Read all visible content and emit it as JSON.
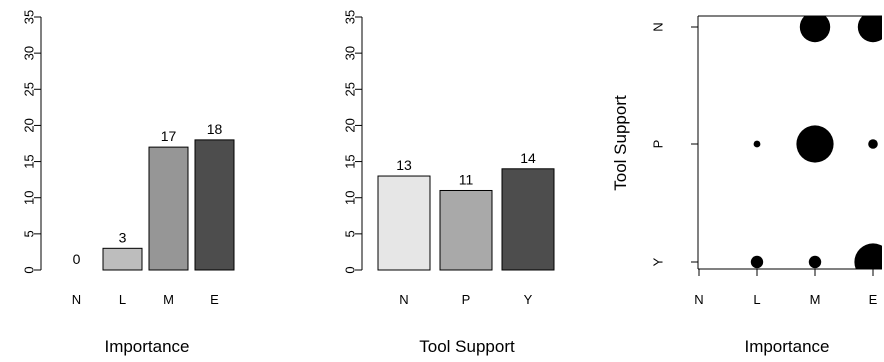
{
  "chart_data": [
    {
      "type": "bar",
      "categories": [
        "N",
        "L",
        "M",
        "E"
      ],
      "values": [
        0,
        3,
        17,
        18
      ],
      "data_labels": [
        "0",
        "3",
        "17",
        "18"
      ],
      "colors": [
        "#e6e6e6",
        "#bdbdbd",
        "#969696",
        "#4d4d4d"
      ],
      "xlabel": "Importance",
      "ylabel": "",
      "ylim": [
        0,
        35
      ],
      "yticks": [
        0,
        5,
        10,
        15,
        20,
        25,
        30,
        35
      ],
      "ytick_labels": [
        "0",
        "5",
        "10",
        "15",
        "20",
        "25",
        "30",
        "35"
      ],
      "grid": false
    },
    {
      "type": "bar",
      "categories": [
        "N",
        "P",
        "Y"
      ],
      "values": [
        13,
        11,
        14
      ],
      "data_labels": [
        "13",
        "11",
        "14"
      ],
      "colors": [
        "#e6e6e6",
        "#a9a9a9",
        "#4d4d4d"
      ],
      "xlabel": "Tool Support",
      "ylabel": "",
      "ylim": [
        0,
        35
      ],
      "yticks": [
        0,
        5,
        10,
        15,
        20,
        25,
        30,
        35
      ],
      "ytick_labels": [
        "0",
        "5",
        "10",
        "15",
        "20",
        "25",
        "30",
        "35"
      ],
      "grid": false
    },
    {
      "type": "scatter",
      "x_categories": [
        "N",
        "L",
        "M",
        "E"
      ],
      "y_categories": [
        "Y",
        "P",
        "N"
      ],
      "points": [
        {
          "x": "L",
          "y": "Y",
          "count": 1
        },
        {
          "x": "M",
          "y": "Y",
          "count": 1
        },
        {
          "x": "E",
          "y": "Y",
          "count": 9
        },
        {
          "x": "L",
          "y": "P",
          "count": 0.3
        },
        {
          "x": "M",
          "y": "P",
          "count": 9
        },
        {
          "x": "E",
          "y": "P",
          "count": 0.6
        },
        {
          "x": "M",
          "y": "N",
          "count": 6
        },
        {
          "x": "E",
          "y": "N",
          "count": 6
        }
      ],
      "point_color": "#000000",
      "xlabel": "Importance",
      "ylabel": "Tool Support",
      "grid": false
    }
  ]
}
